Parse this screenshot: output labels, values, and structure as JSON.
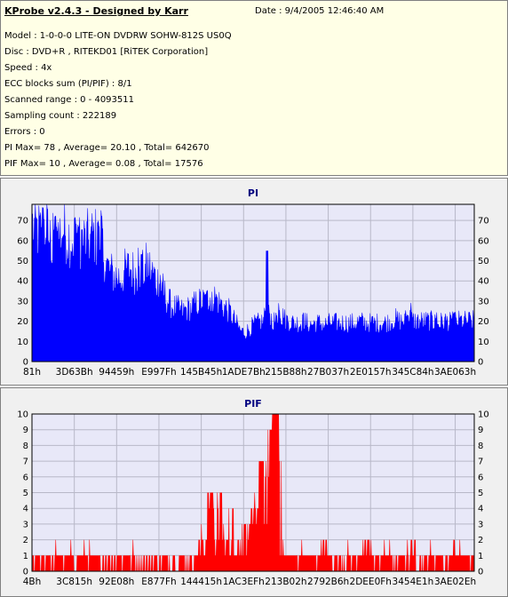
{
  "info": {
    "title": "KProbe v2.4.3 - Designed by Karr",
    "date": "Date : 9/4/2005 12:46:40 AM",
    "lines": [
      "Model : 1-0-0-0 LITE-ON DVDRW SOHW-812S  US0Q",
      "Disc : DVD+R , RITEKD01 [RiTEK Corporation]",
      "Speed : 4x",
      "ECC blocks sum (PI/PIF) : 8/1",
      "Scanned range : 0 - 4093511",
      "Sampling count : 222189",
      "Errors : 0",
      "PI Max= 78 , Average= 20.10 , Total= 642670",
      "PIF Max= 10 , Average= 0.08 , Total= 17576"
    ]
  },
  "colors": {
    "pi": "#0000ff",
    "pif": "#ff0000",
    "plot_bg": "#e8e8f8",
    "title": "#000080"
  },
  "chart_data": [
    {
      "type": "bar",
      "title": "PI",
      "ylim": [
        0,
        78
      ],
      "yticks": [
        0,
        10,
        20,
        30,
        40,
        50,
        60,
        70
      ],
      "xtick_labels": [
        "81h",
        "3D63Bh",
        "94459h",
        "E997Fh",
        "145B45h",
        "1ADE7Bh",
        "215B88h",
        "27B037h",
        "2E0157h",
        "345C84h",
        "3AE063h"
      ],
      "profile": [
        [
          0,
          70
        ],
        [
          1,
          67
        ],
        [
          2,
          66
        ],
        [
          3,
          68
        ],
        [
          4,
          62
        ],
        [
          5,
          60
        ],
        [
          6,
          66
        ],
        [
          7,
          68
        ],
        [
          8,
          65
        ],
        [
          9,
          63
        ],
        [
          10,
          64
        ],
        [
          11,
          63
        ],
        [
          12,
          62
        ],
        [
          13,
          63
        ],
        [
          14,
          65
        ],
        [
          15,
          60
        ],
        [
          16,
          57
        ],
        [
          17,
          48
        ],
        [
          18,
          45
        ],
        [
          19,
          44
        ],
        [
          20,
          43
        ],
        [
          21,
          47
        ],
        [
          22,
          48
        ],
        [
          23,
          46
        ],
        [
          24,
          44
        ],
        [
          25,
          46
        ],
        [
          26,
          50
        ],
        [
          27,
          46
        ],
        [
          28,
          42
        ],
        [
          29,
          40
        ],
        [
          30,
          34
        ],
        [
          31,
          30
        ],
        [
          32,
          28
        ],
        [
          33,
          27
        ],
        [
          34,
          26
        ],
        [
          35,
          27
        ],
        [
          36,
          28
        ],
        [
          37,
          30
        ],
        [
          38,
          31
        ],
        [
          39,
          31
        ],
        [
          40,
          33
        ],
        [
          41,
          34
        ],
        [
          42,
          31
        ],
        [
          43,
          29
        ],
        [
          44,
          27
        ],
        [
          45,
          24
        ],
        [
          46,
          20
        ],
        [
          47,
          16
        ],
        [
          48,
          15
        ],
        [
          49,
          17
        ],
        [
          50,
          19
        ],
        [
          51,
          20
        ],
        [
          52,
          21
        ],
        [
          53,
          21
        ],
        [
          54,
          22
        ],
        [
          55,
          21
        ],
        [
          56,
          25
        ],
        [
          57,
          22
        ],
        [
          58,
          21
        ],
        [
          59,
          20
        ],
        [
          60,
          20
        ],
        [
          61,
          20
        ],
        [
          62,
          20
        ],
        [
          63,
          19
        ],
        [
          64,
          20
        ],
        [
          65,
          20
        ],
        [
          66,
          19
        ],
        [
          67,
          20
        ],
        [
          68,
          20
        ],
        [
          69,
          20
        ],
        [
          70,
          20
        ],
        [
          71,
          20
        ],
        [
          72,
          20
        ],
        [
          73,
          20
        ],
        [
          74,
          21
        ],
        [
          75,
          20
        ],
        [
          76,
          20
        ],
        [
          77,
          20
        ],
        [
          78,
          20
        ],
        [
          79,
          20
        ],
        [
          80,
          20
        ],
        [
          81,
          21
        ],
        [
          82,
          22
        ],
        [
          83,
          21
        ],
        [
          84,
          21
        ],
        [
          85,
          23
        ],
        [
          86,
          21
        ],
        [
          87,
          21
        ],
        [
          88,
          21
        ],
        [
          89,
          21
        ],
        [
          90,
          21
        ],
        [
          91,
          20
        ],
        [
          92,
          20
        ],
        [
          93,
          21
        ],
        [
          94,
          21
        ],
        [
          95,
          20
        ],
        [
          96,
          21
        ],
        [
          97,
          21
        ],
        [
          98,
          21
        ],
        [
          99,
          21
        ],
        [
          100,
          21
        ]
      ],
      "peaks": [
        [
          2,
          78
        ],
        [
          5,
          74
        ],
        [
          10,
          76
        ],
        [
          15,
          77
        ],
        [
          24,
          59
        ],
        [
          29,
          44
        ],
        [
          40,
          36
        ],
        [
          53,
          29
        ],
        [
          56,
          31
        ],
        [
          61,
          25
        ],
        [
          85,
          30
        ],
        [
          91,
          26
        ],
        [
          95,
          25
        ]
      ],
      "spike": {
        "position": 53,
        "value": 55
      }
    },
    {
      "type": "bar",
      "title": "PIF",
      "ylim": [
        0,
        10
      ],
      "yticks": [
        0,
        1,
        2,
        3,
        4,
        5,
        6,
        7,
        8,
        9,
        10
      ],
      "xtick_labels": [
        "4Bh",
        "3C815h",
        "92E08h",
        "E877Fh",
        "144415h",
        "1AC3EFh",
        "213B02h",
        "2792B6h",
        "2DEE0Fh",
        "3454E1h",
        "3AE02Eh"
      ],
      "profile": [
        [
          0,
          1
        ],
        [
          10,
          1
        ],
        [
          20,
          1
        ],
        [
          30,
          1
        ],
        [
          36,
          1
        ],
        [
          38,
          2
        ],
        [
          40,
          3
        ],
        [
          42,
          3
        ],
        [
          44,
          2
        ],
        [
          46,
          2
        ],
        [
          48,
          2
        ],
        [
          50,
          3
        ],
        [
          51,
          4
        ],
        [
          52,
          5
        ],
        [
          53,
          6
        ],
        [
          54,
          7
        ],
        [
          55,
          5
        ],
        [
          56,
          2
        ],
        [
          58,
          1
        ],
        [
          60,
          1
        ],
        [
          70,
          1
        ],
        [
          80,
          1
        ],
        [
          90,
          1
        ],
        [
          100,
          1
        ]
      ],
      "peaks": [
        [
          40,
          5
        ],
        [
          42,
          5
        ],
        [
          45,
          4
        ],
        [
          48,
          3
        ],
        [
          51,
          5
        ],
        [
          52,
          7
        ],
        [
          54,
          9
        ],
        [
          55,
          10
        ],
        [
          56,
          7
        ],
        [
          66,
          2
        ],
        [
          76,
          2
        ],
        [
          86,
          2
        ],
        [
          95,
          2
        ]
      ],
      "spike": {
        "position": 54.5,
        "value": 10
      }
    }
  ]
}
